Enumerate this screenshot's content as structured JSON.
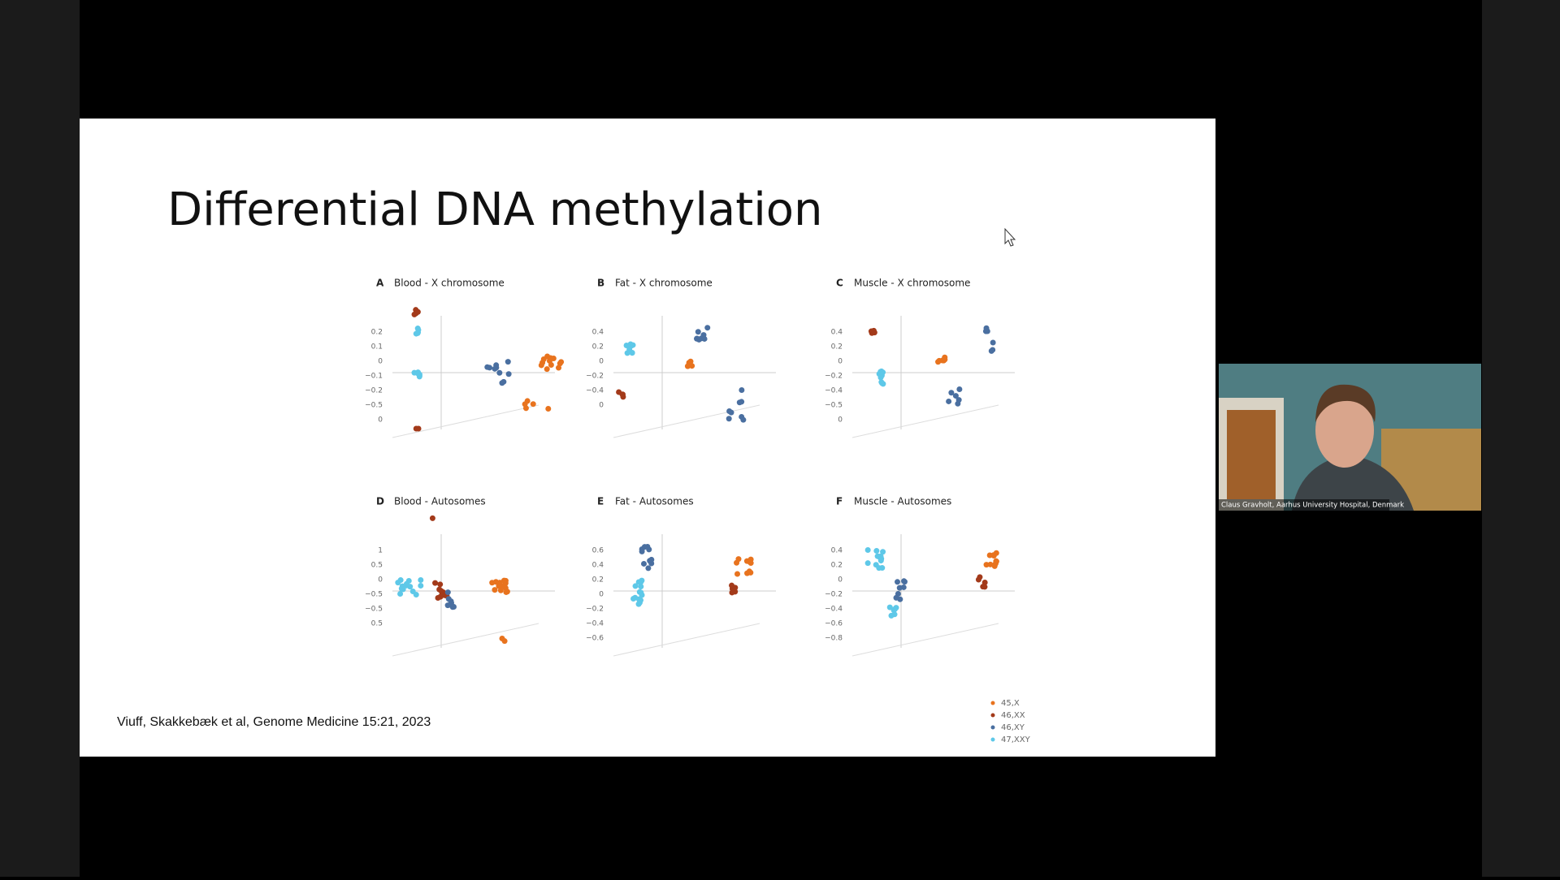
{
  "slide": {
    "title": "Differential DNA methylation",
    "citation": "Viuff, Skakkebæk et al, Genome Medicine 15:21, 2023",
    "panels": [
      {
        "label": "A",
        "title": "Blood  -  X chromosome",
        "ticks": [
          "0.2",
          "0.1",
          "0",
          "−0.1",
          "−0.2",
          "−0.5",
          "0"
        ]
      },
      {
        "label": "B",
        "title": "Fat  -  X chromosome",
        "ticks": [
          "0.4",
          "0.2",
          "0",
          "−0.2",
          "−0.4",
          "0"
        ]
      },
      {
        "label": "C",
        "title": "Muscle  -  X chromosome",
        "ticks": [
          "0.4",
          "0.2",
          "0",
          "−0.2",
          "−0.4",
          "−0.5",
          "0"
        ]
      },
      {
        "label": "D",
        "title": "Blood  -  Autosomes",
        "ticks": [
          "1",
          "0.5",
          "0",
          "−0.5",
          "−0.5",
          "0.5"
        ]
      },
      {
        "label": "E",
        "title": "Fat  -  Autosomes",
        "ticks": [
          "0.6",
          "0.4",
          "0.2",
          "0",
          "−0.2",
          "−0.4",
          "−0.6"
        ]
      },
      {
        "label": "F",
        "title": "Muscle  -  Autosomes",
        "ticks": [
          "0.4",
          "0.2",
          "0",
          "−0.2",
          "−0.4",
          "−0.6",
          "−0.8"
        ]
      }
    ],
    "legend": [
      "45,X",
      "46,XX",
      "46,XY",
      "47,XXY"
    ]
  },
  "webcam": {
    "caption": "Claus Gravholt, Aarhus University Hospital, Denmark"
  }
}
